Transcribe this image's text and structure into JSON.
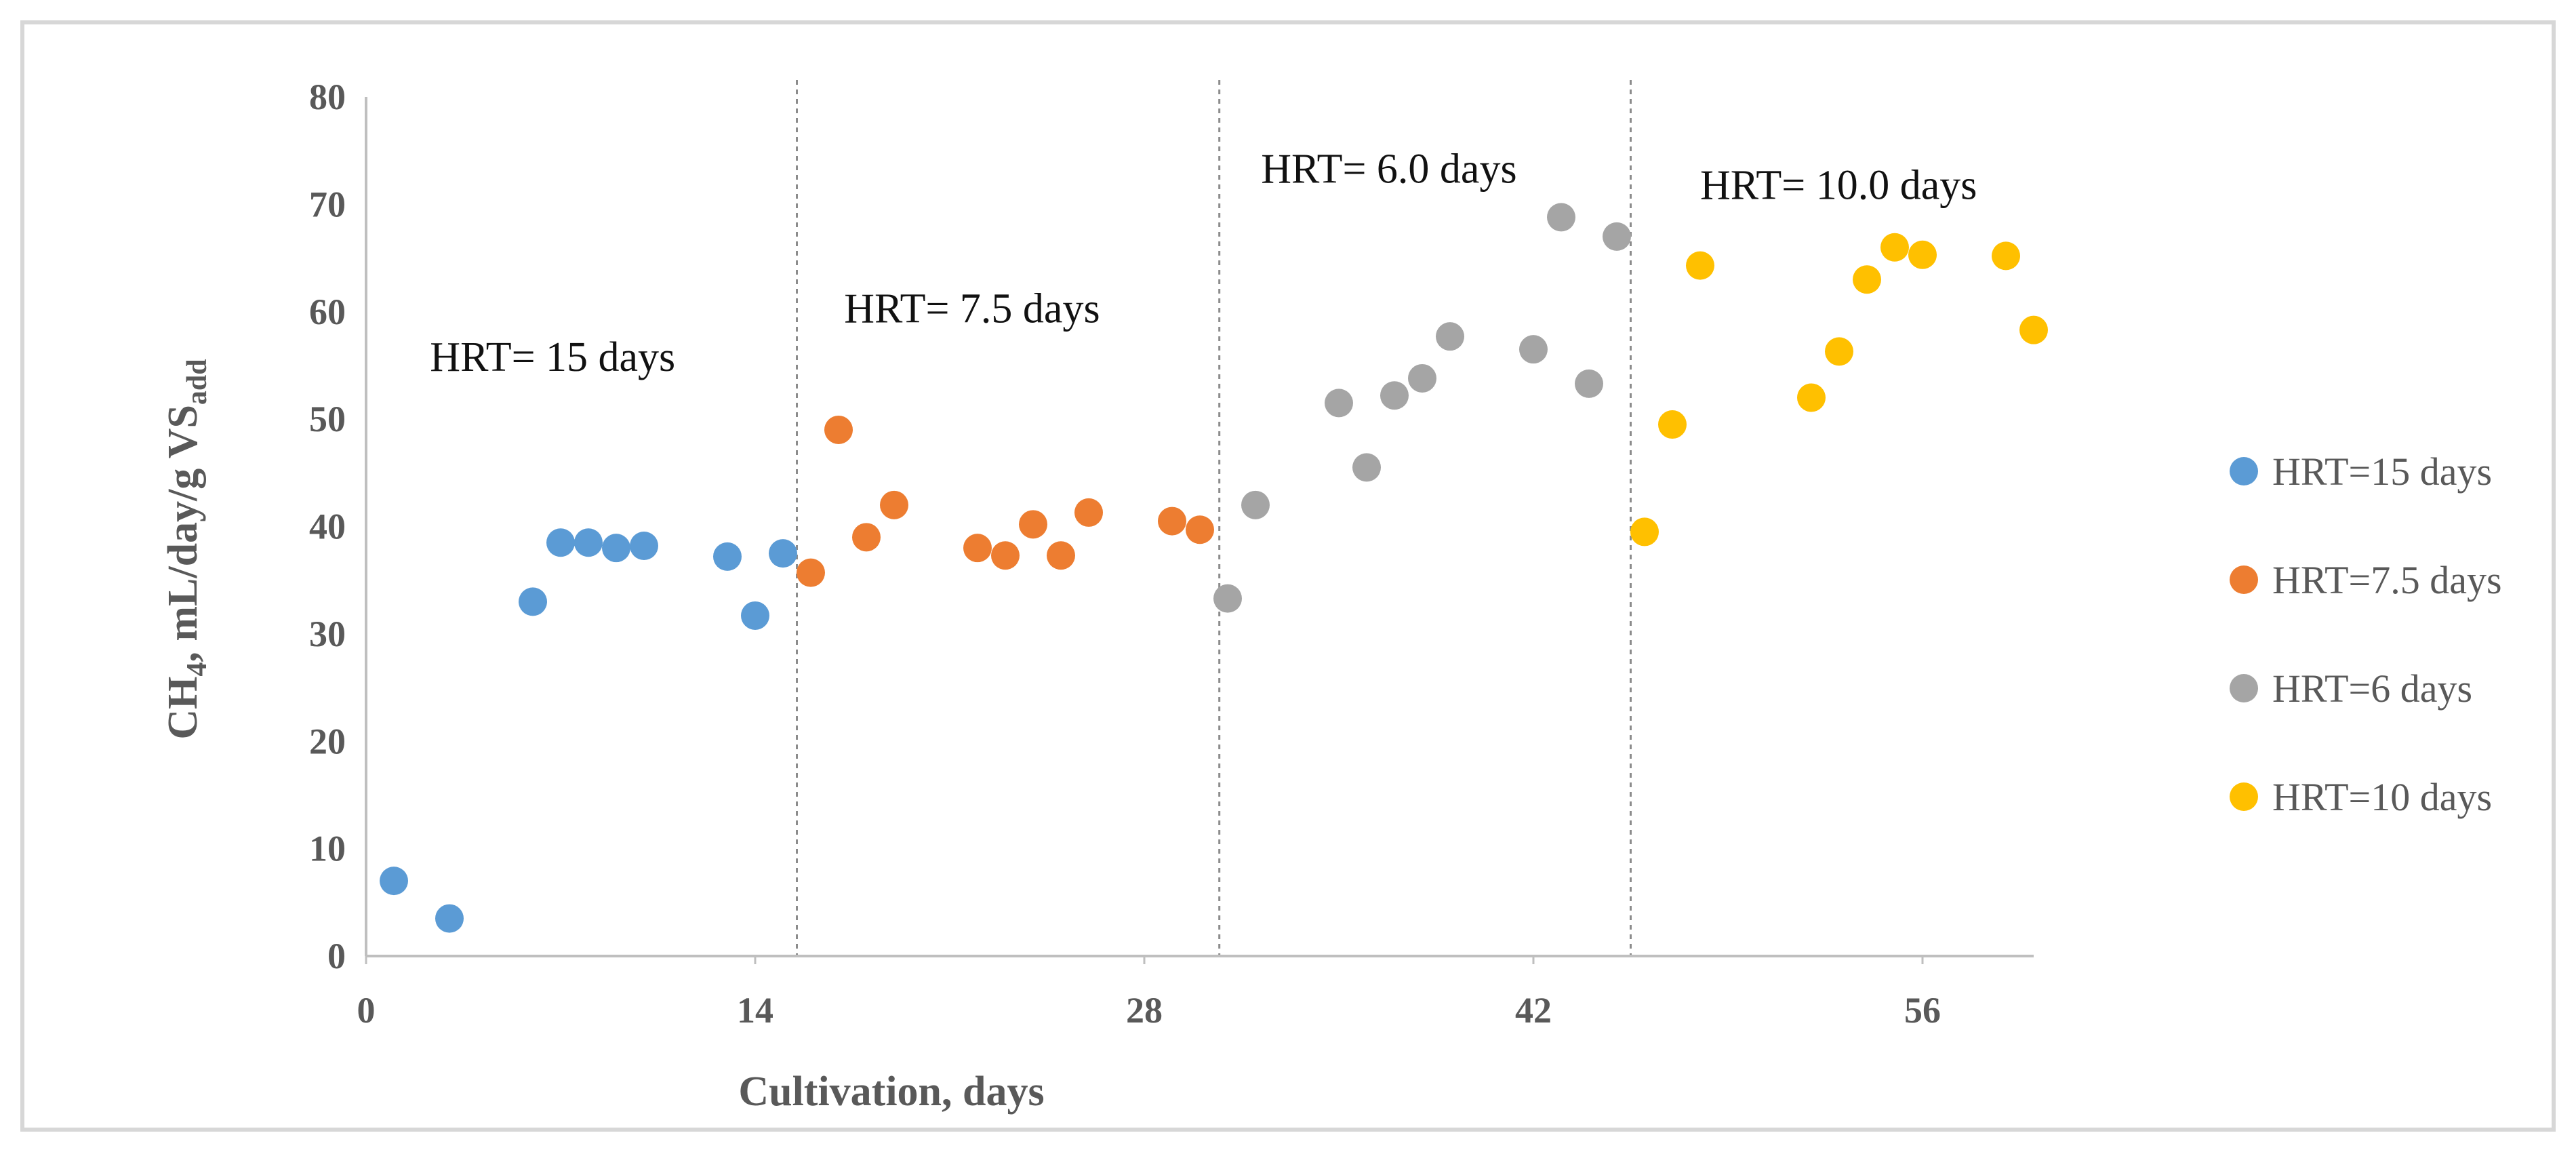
{
  "chart_data": {
    "type": "scatter",
    "title": "",
    "xlabel": "Cultivation, days",
    "ylabel": {
      "main": "CH",
      "sub1": "4",
      "mid": ", mL/day/g VS",
      "sub2": "add"
    },
    "xlim": [
      0,
      60
    ],
    "ylim": [
      0,
      80
    ],
    "xticks": [
      0,
      14,
      28,
      42,
      56
    ],
    "yticks": [
      0,
      10,
      20,
      30,
      40,
      50,
      60,
      70,
      80
    ],
    "grid": false,
    "legend_position": "right",
    "phase_boundaries": [
      15.5,
      30.7,
      45.5
    ],
    "annotations": [
      {
        "text": "HRT= 15 days",
        "x": 2.3,
        "y": 54.5
      },
      {
        "text": "HRT= 7.5 days",
        "x": 17.2,
        "y": 59.0
      },
      {
        "text": "HRT= 6.0 days",
        "x": 32.2,
        "y": 72.0
      },
      {
        "text": "HRT= 10.0 days",
        "x": 48.0,
        "y": 70.5
      }
    ],
    "series": [
      {
        "name": "HRT=15 days",
        "color": "#5B9BD5",
        "x": [
          1,
          3,
          6,
          7,
          8,
          9,
          10,
          13,
          14,
          15
        ],
        "y": [
          7,
          3.5,
          33,
          38.5,
          38.5,
          38,
          38.2,
          37.2,
          31.7,
          37.5
        ]
      },
      {
        "name": "HRT=7.5 days",
        "color": "#ED7D31",
        "x": [
          16,
          17,
          18,
          19,
          22,
          23,
          24,
          25,
          26,
          29,
          30
        ],
        "y": [
          35.7,
          49,
          39,
          42,
          38,
          37.3,
          40.2,
          37.3,
          41.3,
          40.5,
          39.7
        ]
      },
      {
        "name": "HRT=6 days",
        "color": "#A5A5A5",
        "x": [
          31,
          32,
          35,
          36,
          37,
          38,
          39,
          42,
          43,
          44,
          45
        ],
        "y": [
          33.3,
          42,
          51.5,
          45.5,
          52.2,
          53.8,
          57.7,
          56.5,
          68.8,
          53.3,
          67
        ]
      },
      {
        "name": "HRT=10 days",
        "color": "#FFC000",
        "x": [
          46,
          47,
          48,
          52,
          53,
          54,
          55,
          56,
          59,
          60
        ],
        "y": [
          39.5,
          49.5,
          64.3,
          52,
          56.3,
          63,
          66,
          65.3,
          65.2,
          58.3
        ]
      }
    ]
  }
}
